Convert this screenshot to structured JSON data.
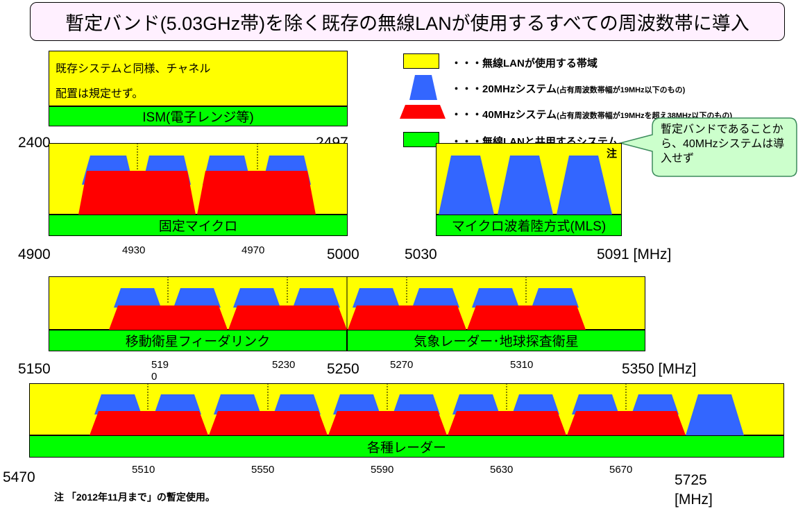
{
  "title": "暫定バンド(5.03GHz帯)を除く既存の無線LANが使用するすべての周波数帯に導入",
  "colors": {
    "wlan_band": "#ffff00",
    "mhz20": "#3366ff",
    "mhz40": "#ff0000",
    "shared": "#00ff00"
  },
  "band1": {
    "note_line1": "既存システムと同様、チャネル",
    "note_line2": "配置は規定せず。",
    "shared_label": "ISM(電子レンジ等)",
    "freq_start": "2400",
    "freq_end": "2497"
  },
  "band2": {
    "shared_label": "固定マイクロ",
    "freqs": [
      "4900",
      "4930",
      "4970",
      "5000"
    ]
  },
  "band3": {
    "shared_label": "マイクロ波着陸方式(MLS)",
    "note_mark": "注",
    "freq_start": "5030",
    "freq_end": "5091 [MHz]"
  },
  "callout": "暫定バンドであることから、40MHzシステムは導入せず",
  "legend": {
    "item1": "・・・無線LANが使用する帯域",
    "item2": "・・・20MHzシステム",
    "item2_sub": "(占有周波数帯幅が19MHz以下のもの)",
    "item3": "・・・40MHzシステム",
    "item3_sub": "(占有周波数帯幅が19MHzを超え38MHz以下のもの)",
    "item4": "・・・無線LANと共用するシステム"
  },
  "band4": {
    "shared_label_left": "移動衛星フィーダリンク",
    "shared_label_right": "気象レーダー･地球探査衛星",
    "freqs": [
      "5150",
      "519\n0",
      "5230",
      "5250",
      "5270",
      "5310",
      "5350 [MHz]"
    ]
  },
  "band5": {
    "shared_label": "各種レーダー",
    "freqs": [
      "5470",
      "5510",
      "5550",
      "5590",
      "5630",
      "5670",
      "5725",
      "[MHz]"
    ]
  },
  "footnote": "注 「2012年11月まで」の暫定使用。"
}
